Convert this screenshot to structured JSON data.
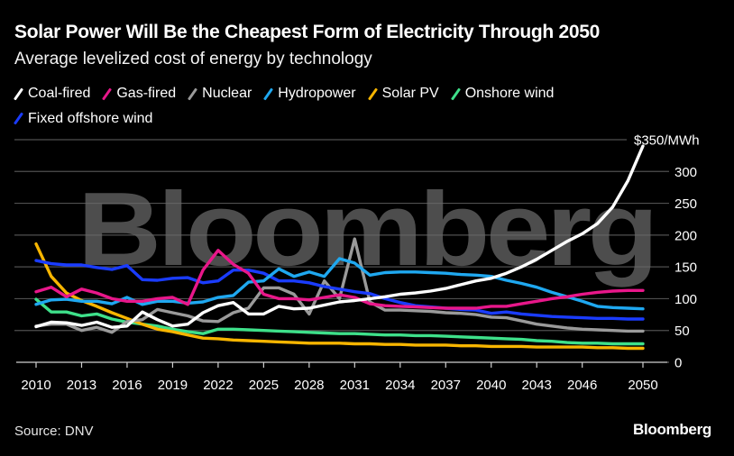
{
  "header": {
    "title": "Solar Power Will Be the Cheapest Form of Electricity Through 2050",
    "subtitle": "Average levelized cost of energy by technology"
  },
  "footer": {
    "source": "Source: DNV",
    "brand": "Bloomberg"
  },
  "watermark": "Bloomberg",
  "chart_data": {
    "type": "line",
    "title": "Solar Power Will Be the Cheapest Form of Electricity Through 2050",
    "subtitle": "Average levelized cost of energy by technology",
    "xlabel": "",
    "ylabel": "$/MWh",
    "x": [
      2010,
      2011,
      2012,
      2013,
      2014,
      2015,
      2016,
      2017,
      2018,
      2019,
      2020,
      2021,
      2022,
      2023,
      2024,
      2025,
      2026,
      2027,
      2028,
      2029,
      2030,
      2031,
      2032,
      2033,
      2034,
      2035,
      2036,
      2037,
      2038,
      2039,
      2040,
      2041,
      2042,
      2043,
      2044,
      2045,
      2046,
      2047,
      2048,
      2049,
      2050
    ],
    "xlim": [
      2010,
      2050
    ],
    "ylim": [
      0,
      350
    ],
    "x_ticks": [
      2010,
      2013,
      2016,
      2019,
      2022,
      2025,
      2028,
      2031,
      2034,
      2037,
      2040,
      2043,
      2046,
      2050
    ],
    "x_tick_labels": [
      "2010",
      "2013",
      "2016",
      "2019",
      "2022",
      "2025",
      "2028",
      "2031",
      "2034",
      "2037",
      "2040",
      "2043",
      "2046",
      "2050"
    ],
    "y_ticks": [
      0,
      50,
      100,
      150,
      200,
      250,
      300,
      350
    ],
    "y_tick_labels": [
      "0",
      "50",
      "100",
      "150",
      "200",
      "250",
      "300",
      "$350/MWh"
    ],
    "y_axis_side": "right",
    "grid": true,
    "legend_position": "top-left",
    "series": [
      {
        "name": "Coal-fired",
        "color": "#ffffff",
        "values": [
          56,
          63,
          62,
          58,
          63,
          55,
          57,
          79,
          67,
          57,
          60,
          78,
          89,
          94,
          76,
          76,
          88,
          84,
          85,
          90,
          95,
          97,
          100,
          103,
          107,
          109,
          112,
          116,
          122,
          128,
          132,
          140,
          150,
          162,
          176,
          190,
          202,
          218,
          244,
          285,
          340
        ]
      },
      {
        "name": "Gas-fired",
        "color": "#e8178a",
        "values": [
          111,
          118,
          103,
          115,
          109,
          100,
          96,
          96,
          100,
          102,
          91,
          145,
          176,
          154,
          140,
          107,
          100,
          100,
          98,
          102,
          106,
          102,
          92,
          89,
          88,
          87,
          86,
          85,
          85,
          85,
          88,
          88,
          92,
          96,
          100,
          103,
          107,
          110,
          112,
          113,
          113
        ]
      },
      {
        "name": "Nuclear",
        "color": "#9a9a9a",
        "values": [
          57,
          60,
          60,
          50,
          55,
          47,
          64,
          67,
          83,
          78,
          73,
          65,
          64,
          78,
          85,
          117,
          117,
          107,
          76,
          128,
          100,
          194,
          95,
          82,
          82,
          81,
          80,
          78,
          77,
          75,
          71,
          70,
          65,
          60,
          57,
          54,
          52,
          51,
          50,
          49,
          49
        ]
      },
      {
        "name": "Hydropower",
        "color": "#1fa8f0",
        "values": [
          91,
          98,
          99,
          96,
          96,
          92,
          102,
          91,
          96,
          96,
          93,
          95,
          102,
          105,
          126,
          128,
          147,
          135,
          142,
          135,
          163,
          156,
          137,
          141,
          142,
          142,
          141,
          140,
          138,
          137,
          135,
          129,
          124,
          118,
          110,
          103,
          96,
          88,
          86,
          85,
          84
        ]
      },
      {
        "name": "Solar PV",
        "color": "#f7b500",
        "values": [
          186,
          135,
          109,
          97,
          88,
          78,
          69,
          60,
          52,
          48,
          43,
          38,
          37,
          35,
          34,
          33,
          32,
          31,
          30,
          30,
          30,
          29,
          29,
          28,
          28,
          27,
          27,
          27,
          26,
          26,
          25,
          25,
          25,
          24,
          24,
          24,
          24,
          23,
          23,
          22,
          22
        ]
      },
      {
        "name": "Onshore wind",
        "color": "#3ee08a",
        "values": [
          99,
          79,
          79,
          73,
          76,
          68,
          63,
          60,
          57,
          52,
          48,
          45,
          52,
          52,
          51,
          50,
          49,
          48,
          47,
          46,
          45,
          45,
          44,
          43,
          43,
          42,
          42,
          41,
          40,
          39,
          38,
          37,
          36,
          34,
          33,
          31,
          30,
          30,
          29,
          29,
          29
        ]
      },
      {
        "name": "Fixed offshore wind",
        "color": "#1a3cff",
        "values": [
          160,
          155,
          153,
          153,
          149,
          146,
          152,
          130,
          129,
          132,
          133,
          125,
          128,
          145,
          145,
          140,
          128,
          128,
          125,
          119,
          115,
          111,
          108,
          100,
          94,
          89,
          87,
          85,
          83,
          82,
          77,
          79,
          76,
          74,
          72,
          71,
          70,
          69,
          69,
          68,
          68
        ]
      }
    ]
  }
}
